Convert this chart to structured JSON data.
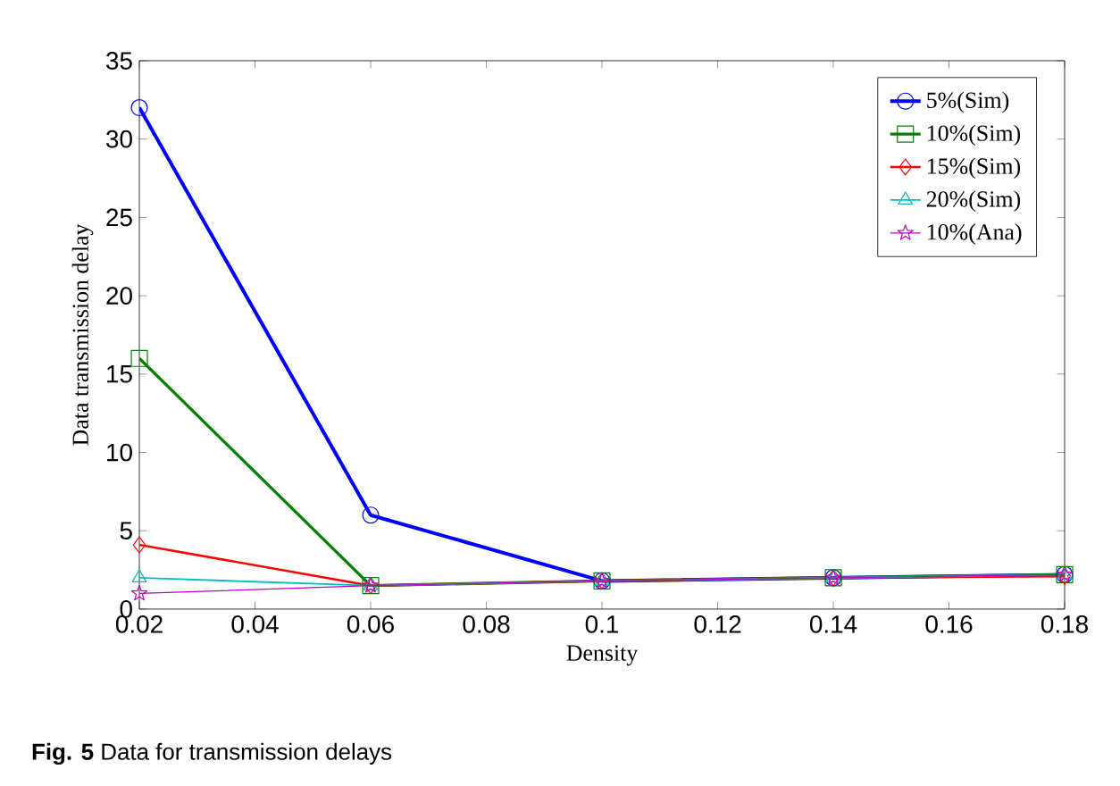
{
  "chart_data": {
    "type": "line",
    "xlabel": "Density",
    "ylabel": "Data transmission delay",
    "x": [
      0.02,
      0.06,
      0.1,
      0.14,
      0.18
    ],
    "series": [
      {
        "name": "5%(Sim)",
        "color": "#0000ff",
        "marker": "circle",
        "values": [
          32,
          6,
          1.8,
          2,
          2.2
        ]
      },
      {
        "name": "10%(Sim)",
        "color": "#008000",
        "marker": "square",
        "values": [
          16,
          1.5,
          1.8,
          2,
          2.2
        ]
      },
      {
        "name": "15%(Sim)",
        "color": "#ff0000",
        "marker": "diamond",
        "values": [
          4.1,
          1.5,
          1.8,
          2,
          2.1
        ]
      },
      {
        "name": "20%(Sim)",
        "color": "#00bfbf",
        "marker": "triangle",
        "values": [
          2,
          1.5,
          1.8,
          2,
          2.2
        ]
      },
      {
        "name": "10%(Ana)",
        "color": "#bf00bf",
        "marker": "star",
        "values": [
          1,
          1.5,
          1.8,
          2,
          2.2
        ]
      }
    ],
    "xlim": [
      0.02,
      0.18
    ],
    "xticks": [
      0.02,
      0.04,
      0.06,
      0.08,
      0.1,
      0.12,
      0.14,
      0.16,
      0.18
    ],
    "ylim": [
      0,
      35
    ],
    "yticks": [
      0,
      5,
      10,
      15,
      20,
      25,
      30,
      35
    ],
    "legend": "top right",
    "grid": false,
    "annotations": [
      "**Fig. 5** Data for transmission delays"
    ]
  }
}
